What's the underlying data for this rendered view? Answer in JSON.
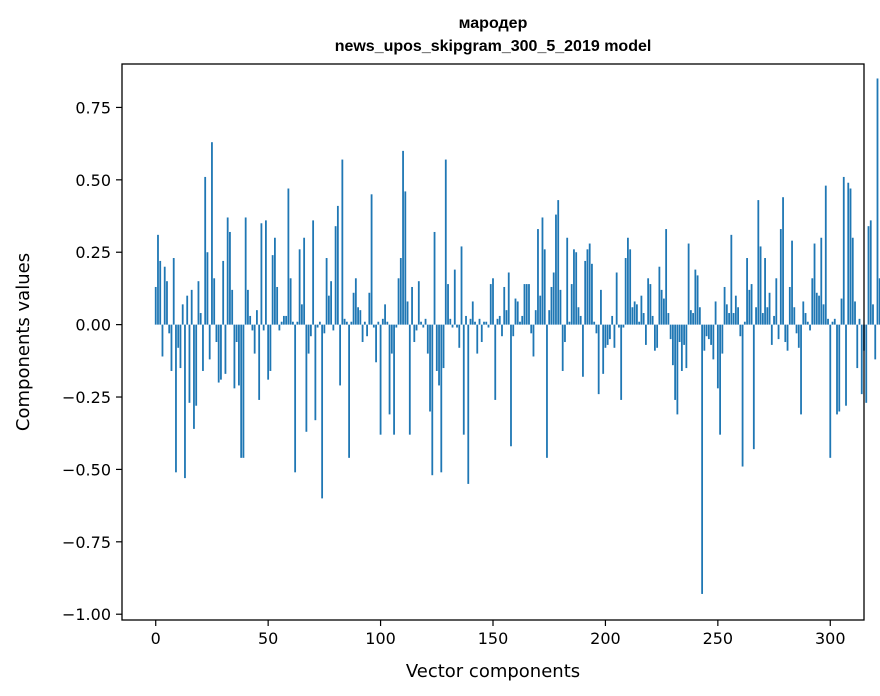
{
  "chart_data": {
    "type": "bar",
    "title": "мародер",
    "subtitle": "news_upos_skipgram_300_5_2019 model",
    "xlabel": "Vector components",
    "ylabel": "Components values",
    "xlim": [
      -15,
      315
    ],
    "ylim": [
      -1.02,
      0.9
    ],
    "xticks": [
      0,
      50,
      100,
      150,
      200,
      250,
      300
    ],
    "yticks": [
      0.75,
      0.5,
      0.25,
      0.0,
      -0.25,
      -0.5,
      -0.75,
      -1.0
    ],
    "ytick_labels": [
      "0.75",
      "0.50",
      "0.25",
      "0.00",
      "−0.25",
      "−0.50",
      "−0.75",
      "−1.00"
    ],
    "bar_color": "#1f77b4",
    "grid": false,
    "legend": "none",
    "values": [
      0.13,
      0.31,
      0.22,
      -0.11,
      0.2,
      0.15,
      -0.03,
      -0.16,
      0.23,
      -0.51,
      -0.08,
      -0.15,
      0.07,
      -0.53,
      0.1,
      -0.27,
      0.12,
      -0.36,
      -0.28,
      0.15,
      0.04,
      -0.16,
      0.51,
      0.25,
      -0.12,
      0.63,
      0.16,
      -0.06,
      -0.2,
      -0.19,
      0.22,
      -0.17,
      0.37,
      0.32,
      0.12,
      -0.22,
      -0.06,
      -0.21,
      -0.46,
      -0.46,
      0.37,
      0.12,
      0.03,
      -0.02,
      -0.1,
      0.05,
      -0.26,
      0.35,
      -0.02,
      0.36,
      -0.19,
      -0.16,
      0.24,
      0.3,
      0.13,
      -0.02,
      0.01,
      0.03,
      0.03,
      0.47,
      0.16,
      0.01,
      -0.51,
      0.01,
      0.26,
      0.07,
      0.3,
      -0.37,
      -0.1,
      -0.04,
      0.36,
      -0.33,
      -0.01,
      0.01,
      -0.6,
      -0.03,
      0.23,
      0.1,
      0.15,
      -0.02,
      0.34,
      0.41,
      -0.21,
      0.57,
      0.02,
      0.01,
      -0.46,
      0.01,
      0.11,
      0.16,
      0.06,
      0.05,
      -0.06,
      0.01,
      -0.04,
      0.11,
      0.45,
      -0.01,
      -0.13,
      0.01,
      -0.38,
      0.02,
      0.07,
      0.01,
      -0.31,
      -0.1,
      -0.38,
      -0.01,
      0.16,
      0.23,
      0.6,
      0.46,
      0.08,
      -0.38,
      0.13,
      -0.06,
      -0.02,
      0.15,
      0.01,
      -0.01,
      0.02,
      -0.1,
      -0.3,
      -0.52,
      0.32,
      -0.16,
      -0.21,
      -0.51,
      -0.15,
      0.57,
      0.14,
      0.02,
      -0.01,
      0.19,
      -0.01,
      -0.08,
      0.27,
      -0.38,
      0.03,
      -0.55,
      0.02,
      0.08,
      0.01,
      -0.1,
      0.02,
      -0.06,
      0.01,
      0.01,
      -0.01,
      0.14,
      0.16,
      -0.26,
      0.02,
      0.03,
      -0.04,
      0.13,
      0.05,
      0.18,
      -0.42,
      -0.04,
      0.09,
      0.08,
      0.01,
      0.03,
      0.14,
      0.14,
      0.14,
      -0.03,
      -0.11,
      0.05,
      0.33,
      0.1,
      0.37,
      0.26,
      -0.46,
      0.05,
      0.13,
      0.18,
      0.38,
      0.43,
      0.12,
      -0.16,
      -0.06,
      0.3,
      0.01,
      0.14,
      0.26,
      0.25,
      0.06,
      0.03,
      -0.18,
      0.22,
      0.26,
      0.28,
      0.21,
      0.01,
      -0.03,
      -0.24,
      0.12,
      -0.17,
      -0.08,
      -0.07,
      -0.05,
      0.03,
      -0.08,
      0.18,
      -0.01,
      -0.26,
      -0.01,
      0.23,
      0.3,
      0.26,
      0.06,
      0.08,
      0.07,
      0.01,
      0.1,
      0.04,
      -0.07,
      0.16,
      0.14,
      0.03,
      -0.09,
      -0.08,
      0.2,
      0.12,
      0.09,
      0.33,
      0.04,
      -0.05,
      -0.14,
      -0.26,
      -0.31,
      -0.06,
      -0.16,
      -0.07,
      -0.15,
      0.28,
      0.05,
      0.04,
      0.19,
      0.17,
      0.06,
      -0.93,
      -0.09,
      -0.04,
      -0.05,
      -0.07,
      -0.12,
      0.08,
      -0.22,
      -0.38,
      -0.1,
      0.13,
      0.07,
      0.04,
      0.31,
      0.04,
      0.1,
      0.06,
      -0.04,
      -0.49,
      0.01,
      0.23,
      0.12,
      0.14,
      -0.43,
      0.06,
      0.43,
      0.27,
      0.04,
      0.23,
      0.06,
      0.11,
      -0.07,
      0.03,
      0.16,
      -0.05,
      0.33,
      0.44,
      -0.06,
      -0.09,
      0.13,
      0.29,
      0.06,
      -0.03,
      -0.08,
      -0.31,
      0.08,
      0.04,
      0.01,
      -0.02,
      0.16,
      0.28,
      0.11,
      0.1,
      0.3,
      0.07,
      0.48,
      0.02,
      -0.46,
      0.01,
      0.02,
      -0.31,
      -0.3,
      0.09,
      0.51,
      -0.28,
      0.49,
      0.47,
      0.3,
      0.08,
      -0.15,
      0.02,
      -0.24,
      -0.09,
      -0.27,
      0.34,
      0.36,
      0.07,
      -0.12,
      0.85,
      0.16,
      0.05,
      -0.11,
      0.03
    ]
  }
}
